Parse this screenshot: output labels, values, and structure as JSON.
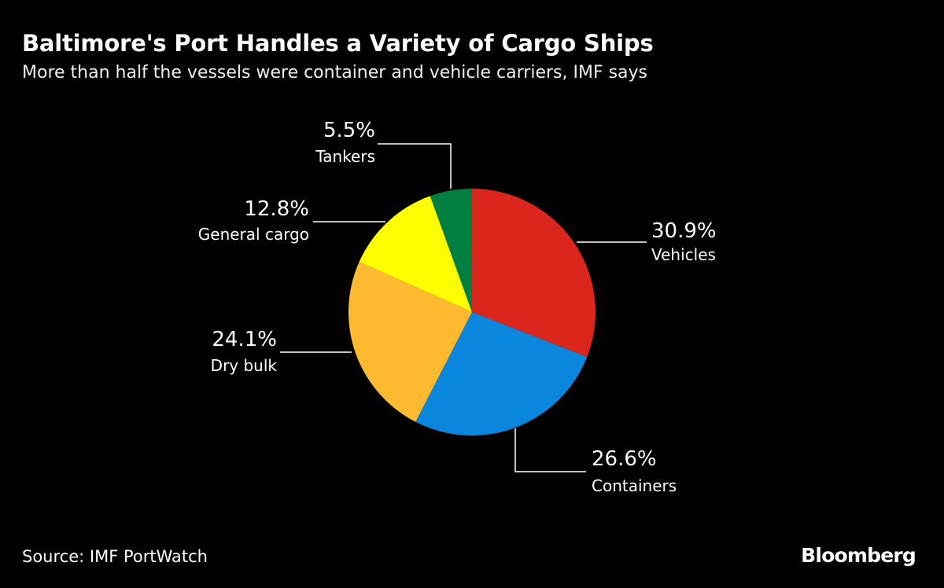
{
  "chart_data": {
    "type": "pie",
    "title": "Baltimore's Port Handles a Variety of Cargo Ships",
    "subtitle": "More than half the vessels were container and vehicle carriers, IMF says",
    "start_angle": "top, clockwise",
    "slices": [
      {
        "label": "Vehicles",
        "value": 30.9,
        "value_label": "30.9%",
        "color": "#db261d"
      },
      {
        "label": "Containers",
        "value": 26.6,
        "value_label": "26.6%",
        "color": "#0a87dc"
      },
      {
        "label": "Dry bulk",
        "value": 24.1,
        "value_label": "24.1%",
        "color": "#fdb92f"
      },
      {
        "label": "General cargo",
        "value": 12.8,
        "value_label": "12.8%",
        "color": "#ffff00"
      },
      {
        "label": "Tankers",
        "value": 5.5,
        "value_label": "5.5%",
        "color": "#008040"
      }
    ]
  },
  "footer": {
    "source": "Source: IMF PortWatch",
    "logo": "Bloomberg"
  }
}
